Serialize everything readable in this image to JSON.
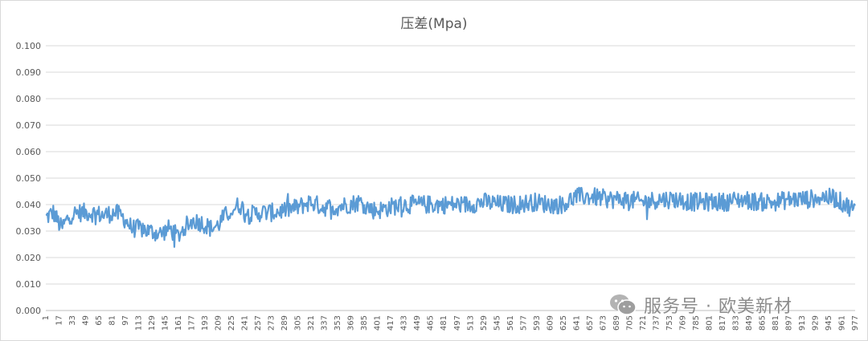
{
  "chart_data": {
    "type": "line",
    "title": "压差(Mpa)",
    "xlabel": "",
    "ylabel": "",
    "ylim": [
      0,
      0.1
    ],
    "yticks": [
      "0.000",
      "0.010",
      "0.020",
      "0.030",
      "0.040",
      "0.050",
      "0.060",
      "0.070",
      "0.080",
      "0.090",
      "0.100"
    ],
    "x_range": [
      1,
      977
    ],
    "xtick_step": 16,
    "xticks": [
      "1",
      "17",
      "33",
      "49",
      "65",
      "81",
      "97",
      "113",
      "129",
      "145",
      "161",
      "177",
      "193",
      "209",
      "225",
      "241",
      "257",
      "273",
      "289",
      "305",
      "321",
      "337",
      "353",
      "369",
      "385",
      "401",
      "417",
      "433",
      "449",
      "465",
      "481",
      "497",
      "513",
      "529",
      "545",
      "561",
      "577",
      "593",
      "609",
      "625",
      "641",
      "657",
      "673",
      "689",
      "705",
      "721",
      "737",
      "753",
      "769",
      "785",
      "801",
      "817",
      "833",
      "849",
      "865",
      "881",
      "897",
      "913",
      "929",
      "945",
      "961",
      "977"
    ],
    "grid": "horizontal",
    "legend": "none",
    "series": [
      {
        "name": "",
        "color": "#5b9bd5",
        "points": [
          [
            1,
            0.035
          ],
          [
            10,
            0.037
          ],
          [
            20,
            0.031
          ],
          [
            30,
            0.036
          ],
          [
            40,
            0.037
          ],
          [
            55,
            0.037
          ],
          [
            70,
            0.036
          ],
          [
            85,
            0.037
          ],
          [
            95,
            0.035
          ],
          [
            105,
            0.031
          ],
          [
            115,
            0.031
          ],
          [
            125,
            0.03
          ],
          [
            140,
            0.029
          ],
          [
            150,
            0.031
          ],
          [
            160,
            0.028
          ],
          [
            170,
            0.032
          ],
          [
            180,
            0.034
          ],
          [
            190,
            0.033
          ],
          [
            200,
            0.031
          ],
          [
            208,
            0.032
          ],
          [
            215,
            0.035
          ],
          [
            225,
            0.038
          ],
          [
            235,
            0.04
          ],
          [
            245,
            0.036
          ],
          [
            260,
            0.037
          ],
          [
            275,
            0.037
          ],
          [
            290,
            0.038
          ],
          [
            305,
            0.039
          ],
          [
            320,
            0.041
          ],
          [
            335,
            0.039
          ],
          [
            350,
            0.039
          ],
          [
            365,
            0.04
          ],
          [
            380,
            0.041
          ],
          [
            395,
            0.038
          ],
          [
            405,
            0.038
          ],
          [
            415,
            0.039
          ],
          [
            430,
            0.04
          ],
          [
            450,
            0.04
          ],
          [
            470,
            0.04
          ],
          [
            490,
            0.04
          ],
          [
            510,
            0.04
          ],
          [
            530,
            0.041
          ],
          [
            550,
            0.04
          ],
          [
            570,
            0.04
          ],
          [
            590,
            0.041
          ],
          [
            610,
            0.04
          ],
          [
            625,
            0.04
          ],
          [
            640,
            0.043
          ],
          [
            660,
            0.043
          ],
          [
            680,
            0.042
          ],
          [
            700,
            0.042
          ],
          [
            720,
            0.041
          ],
          [
            740,
            0.042
          ],
          [
            760,
            0.042
          ],
          [
            780,
            0.041
          ],
          [
            800,
            0.041
          ],
          [
            820,
            0.041
          ],
          [
            840,
            0.042
          ],
          [
            860,
            0.041
          ],
          [
            880,
            0.041
          ],
          [
            900,
            0.042
          ],
          [
            920,
            0.042
          ],
          [
            940,
            0.043
          ],
          [
            955,
            0.042
          ],
          [
            965,
            0.04
          ],
          [
            977,
            0.038
          ]
        ],
        "noise_amplitude": 0.0035
      }
    ]
  },
  "watermark": {
    "text": "服务号 · 欧美新材",
    "icon": "wechat-icon"
  }
}
